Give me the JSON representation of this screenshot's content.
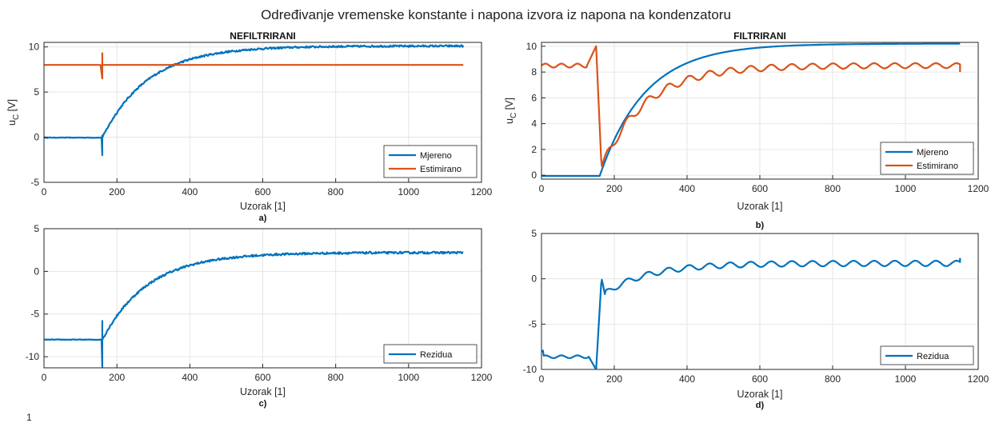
{
  "figure": {
    "title": "Određivanje vremenske konstante i napona izvora iz napona na kondenzatoru",
    "bottom_fragment": "1"
  },
  "colors": {
    "measured": "#0072BD",
    "estimated": "#D95319",
    "residual": "#0072BD",
    "grid": "#e6e6e6",
    "axis": "#262626"
  },
  "chart_data": [
    {
      "id": "a",
      "type": "line",
      "title": "NEFILTRIRANI",
      "xlabel": "Uzorak [1]",
      "ylabel": "u_C [V]",
      "sublabel": "a)",
      "xlim": [
        0,
        1200
      ],
      "ylim": [
        -5,
        10.5
      ],
      "xticks": [
        0,
        200,
        400,
        600,
        800,
        1000,
        1200
      ],
      "yticks": [
        -5,
        0,
        5,
        10
      ],
      "grid": true,
      "legend_position": "bottom-right",
      "series": [
        {
          "name": "Mjereno",
          "model": "step-exp",
          "start": -0.05,
          "step_at": 160,
          "final": 10.1,
          "tau": 125,
          "glitch": [
            -2.0,
            0.2
          ],
          "noise": 0.1,
          "end": 1150
        },
        {
          "name": "Estimirano",
          "model": "constant",
          "value": 8.0,
          "glitch_at": 160,
          "glitch": [
            6.5,
            9.3
          ],
          "end": 1150
        }
      ]
    },
    {
      "id": "b",
      "type": "line",
      "title": "FILTRIRANI",
      "xlabel": "Uzorak [1]",
      "ylabel": "u_C [V]",
      "sublabel": "b)",
      "xlim": [
        0,
        1200
      ],
      "ylim": [
        -0.3,
        10.3
      ],
      "xticks": [
        0,
        200,
        400,
        600,
        800,
        1000,
        1200
      ],
      "yticks": [
        0,
        2,
        4,
        6,
        8,
        10
      ],
      "grid": true,
      "legend_position": "bottom-right",
      "series": [
        {
          "name": "Mjereno",
          "model": "step-exp",
          "start": -0.05,
          "step_at": 160,
          "final": 10.2,
          "tau": 125,
          "end": 1150
        },
        {
          "name": "Estimirano",
          "model": "estimator",
          "pre": 8.5,
          "peak": 10.0,
          "peak_at": 150,
          "min": 0.6,
          "min_at": 165,
          "final": 8.5,
          "tau": 120,
          "ripple": 0.35,
          "end": 1150
        }
      ]
    },
    {
      "id": "c",
      "type": "line",
      "title": "",
      "xlabel": "Uzorak [1]",
      "ylabel": "",
      "sublabel": "c)",
      "xlim": [
        0,
        1200
      ],
      "ylim": [
        -11.3,
        5
      ],
      "xticks": [
        0,
        200,
        400,
        600,
        800,
        1000,
        1200
      ],
      "yticks": [
        -10,
        -5,
        0,
        5
      ],
      "grid": true,
      "legend_position": "bottom-right",
      "series": [
        {
          "name": "Rezidua",
          "model": "step-exp",
          "start": -8.0,
          "step_at": 160,
          "final": 2.2,
          "tau": 125,
          "glitch": [
            -11.2,
            -5.8
          ],
          "noise": 0.12,
          "end": 1150
        }
      ]
    },
    {
      "id": "d",
      "type": "line",
      "title": "",
      "xlabel": "Uzorak [1]",
      "ylabel": "",
      "sublabel": "d)",
      "xlim": [
        0,
        1200
      ],
      "ylim": [
        -10,
        5
      ],
      "xticks": [
        0,
        200,
        400,
        600,
        800,
        1000,
        1200
      ],
      "yticks": [
        -10,
        -5,
        0,
        5
      ],
      "grid": true,
      "legend_position": "bottom-right",
      "series": [
        {
          "name": "Rezidua",
          "model": "residual-filtered",
          "pre": -8.6,
          "dip": -10.0,
          "dip_at": 150,
          "peak": 0.1,
          "peak_at": 165,
          "settle": 1.7,
          "tau": 120,
          "ripple": 0.3,
          "end_value": 2.3,
          "end": 1150
        }
      ]
    }
  ]
}
